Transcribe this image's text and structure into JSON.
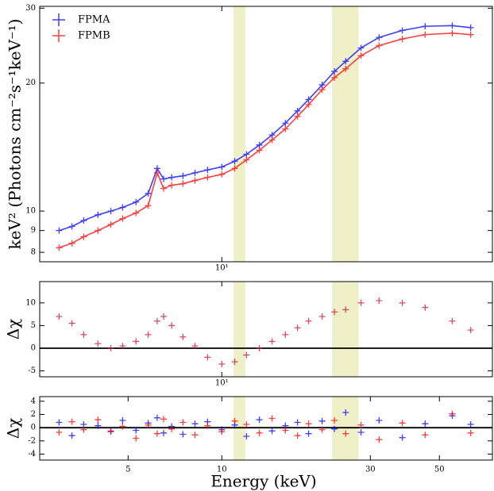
{
  "chart_data": [
    {
      "type": "scatter",
      "ylabel": "keV² (Photons cm⁻²s⁻¹keV⁻¹)",
      "xscale": "log",
      "yscale": "log",
      "xlim": [
        2.6,
        74
      ],
      "ylim": [
        7.6,
        30.3
      ],
      "xticks": [
        {
          "value": 10,
          "label": "10¹"
        }
      ],
      "yticks": [
        8,
        9,
        10,
        20,
        30
      ],
      "legend": "upper left",
      "model_lines": true,
      "shaded": [
        [
          10.9,
          11.9
        ],
        [
          22.6,
          27.5
        ]
      ],
      "shade_color": "#efefc8",
      "x": [
        3.0,
        3.3,
        3.6,
        4.0,
        4.4,
        4.8,
        5.3,
        5.8,
        6.2,
        6.5,
        6.9,
        7.5,
        8.2,
        9.0,
        10.0,
        11.0,
        12.0,
        13.2,
        14.5,
        16.0,
        17.5,
        19.0,
        21.0,
        23.0,
        25.0,
        28.0,
        32.0,
        38.0,
        45.0,
        55.0,
        63.0
      ],
      "series": [
        {
          "name": "FPMA",
          "color": "#0000ff",
          "values": [
            9.0,
            9.2,
            9.5,
            9.8,
            10.0,
            10.2,
            10.5,
            11.0,
            12.6,
            11.9,
            12.0,
            12.1,
            12.3,
            12.5,
            12.7,
            13.1,
            13.6,
            14.3,
            15.1,
            16.1,
            17.2,
            18.3,
            19.8,
            21.3,
            22.5,
            24.2,
            25.6,
            26.6,
            27.2,
            27.3,
            27.0
          ]
        },
        {
          "name": "FPMB",
          "color": "#ff0000",
          "values": [
            8.2,
            8.4,
            8.7,
            9.0,
            9.3,
            9.6,
            9.9,
            10.3,
            12.3,
            11.3,
            11.5,
            11.6,
            11.8,
            12.0,
            12.2,
            12.6,
            13.2,
            13.9,
            14.7,
            15.6,
            16.7,
            17.8,
            19.3,
            20.6,
            21.6,
            23.2,
            24.5,
            25.4,
            26.0,
            26.2,
            26.0
          ]
        }
      ]
    },
    {
      "type": "scatter",
      "ylabel": "Δχ",
      "xscale": "log",
      "xlim": [
        2.6,
        74
      ],
      "ylim": [
        -6.3,
        14.7
      ],
      "xticks": [
        {
          "value": 10,
          "label": "10¹"
        }
      ],
      "yticks": [
        -5,
        0,
        5,
        10
      ],
      "hline": 0,
      "shaded": [
        [
          10.9,
          11.9
        ],
        [
          22.6,
          27.5
        ]
      ],
      "shade_color": "#efefc8",
      "x": [
        3.0,
        3.3,
        3.6,
        4.0,
        4.4,
        4.8,
        5.3,
        5.8,
        6.2,
        6.5,
        6.9,
        7.5,
        8.2,
        9.0,
        10.0,
        11.0,
        12.0,
        13.2,
        14.5,
        16.0,
        17.5,
        19.0,
        21.0,
        23.0,
        25.0,
        28.0,
        32.0,
        38.0,
        45.0,
        55.0,
        63.0
      ],
      "series": [
        {
          "color": "#c8103c",
          "values": [
            7,
            5.5,
            3,
            1,
            0,
            0.5,
            1.5,
            3,
            6,
            7,
            5,
            2.5,
            0.5,
            -2,
            -3.5,
            -3,
            -1.5,
            0,
            1.5,
            3,
            4.5,
            6,
            7,
            8,
            8.5,
            10,
            10.5,
            10,
            9,
            6,
            4
          ]
        }
      ]
    },
    {
      "type": "scatter",
      "ylabel": "Δχ",
      "xlabel": "Energy (keV)",
      "xscale": "log",
      "xlim": [
        2.6,
        74
      ],
      "ylim": [
        -4.9,
        4.7
      ],
      "xticks": [
        5,
        10,
        30,
        50
      ],
      "yticks": [
        -4,
        -2,
        0,
        2,
        4
      ],
      "hline": 0,
      "shaded": [
        [
          10.9,
          11.9
        ],
        [
          22.6,
          27.5
        ]
      ],
      "shade_color": "#efefc8",
      "x": [
        3.0,
        3.3,
        3.6,
        4.0,
        4.4,
        4.8,
        5.3,
        5.8,
        6.2,
        6.5,
        6.9,
        7.5,
        8.2,
        9.0,
        10.0,
        11.0,
        12.0,
        13.2,
        14.5,
        16.0,
        17.5,
        19.0,
        21.0,
        23.0,
        25.0,
        28.0,
        32.0,
        38.0,
        45.0,
        55.0,
        63.0
      ],
      "series": [
        {
          "color": "#0000ff",
          "values": [
            0.8,
            -1.2,
            0.5,
            0.3,
            -0.6,
            1.1,
            -0.4,
            0.7,
            1.5,
            -0.8,
            0.2,
            -1.0,
            0.6,
            0.9,
            -0.3,
            0.4,
            -1.3,
            1.2,
            -0.5,
            0.3,
            0.8,
            -0.9,
            1.0,
            -0.2,
            2.3,
            -0.7,
            1.1,
            -1.5,
            0.6,
            1.8,
            0.5
          ]
        },
        {
          "color": "#ff0000",
          "values": [
            -0.7,
            0.9,
            -0.3,
            1.2,
            -0.5,
            0.2,
            -1.6,
            0.4,
            -0.9,
            1.3,
            -0.2,
            0.8,
            -1.1,
            0.3,
            -0.6,
            1.0,
            0.5,
            -0.8,
            1.4,
            -0.4,
            -1.2,
            0.6,
            -0.3,
            1.1,
            -0.9,
            0.4,
            -1.8,
            0.7,
            -1.1,
            2.1,
            -0.8
          ]
        }
      ]
    }
  ]
}
